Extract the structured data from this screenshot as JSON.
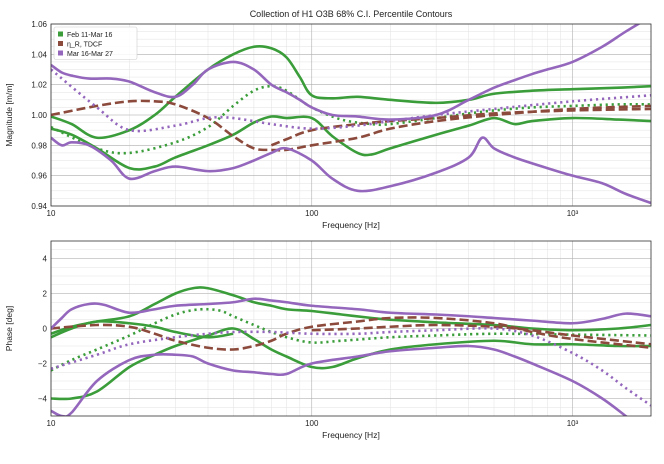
{
  "chart_data": [
    {
      "type": "line",
      "panel": "magnitude",
      "title": "Collection of H1 O3B 68% C.I. Percentile Contours",
      "xlabel": "Frequency [Hz]",
      "ylabel": "Magnitude [m/m]",
      "xscale": "log",
      "xlim": [
        10,
        2000
      ],
      "ylim": [
        0.94,
        1.06
      ],
      "xticks": [
        {
          "value": 10,
          "label": "10"
        },
        {
          "value": 100,
          "label": "100"
        },
        {
          "value": 1000,
          "label": "10³"
        }
      ],
      "yticks": [
        {
          "value": 0.94,
          "label": "0.94"
        },
        {
          "value": 0.96,
          "label": "0.96"
        },
        {
          "value": 0.98,
          "label": "0.98"
        },
        {
          "value": 1.0,
          "label": "1.00"
        },
        {
          "value": 1.02,
          "label": "1.02"
        },
        {
          "value": 1.04,
          "label": "1.04"
        },
        {
          "value": 1.06,
          "label": "1.06"
        }
      ],
      "ytick_major": 0.02,
      "legend_position": "top-left",
      "legend": [
        {
          "label": "Feb 11-Mar 16",
          "color": "#3a9d3a"
        },
        {
          "label": "η_R, TDCF",
          "color": "#8c4a3c"
        },
        {
          "label": "Mar 16-Mar 27",
          "color": "#9467bd"
        }
      ],
      "series": [
        {
          "name": "Feb 11-Mar 16 upper",
          "color": "#3a9d3a",
          "style": "solid",
          "x": [
            10,
            12,
            15,
            20,
            25,
            30,
            40,
            50,
            60,
            70,
            80,
            90,
            100,
            120,
            150,
            200,
            300,
            400,
            500,
            700,
            1000,
            1500,
            2000
          ],
          "y": [
            0.999,
            0.994,
            0.985,
            0.99,
            1.0,
            1.012,
            1.03,
            1.04,
            1.045,
            1.044,
            1.038,
            1.025,
            1.013,
            1.011,
            1.012,
            1.01,
            1.008,
            1.01,
            1.014,
            1.016,
            1.017,
            1.018,
            1.019
          ]
        },
        {
          "name": "Feb 11-Mar 16 median",
          "color": "#3a9d3a",
          "style": "dotted",
          "x": [
            10,
            15,
            20,
            30,
            40,
            50,
            60,
            70,
            80,
            100,
            130,
            170,
            200,
            300,
            400,
            500,
            700,
            1000,
            1500,
            2000
          ],
          "y": [
            0.992,
            0.978,
            0.975,
            0.982,
            0.992,
            1.006,
            1.016,
            1.019,
            1.016,
            1.005,
            0.997,
            0.994,
            0.994,
            0.998,
            1.001,
            1.003,
            1.005,
            1.006,
            1.007,
            1.007
          ]
        },
        {
          "name": "Feb 11-Mar 16 lower",
          "color": "#3a9d3a",
          "style": "solid",
          "x": [
            10,
            12,
            15,
            20,
            25,
            30,
            40,
            50,
            60,
            70,
            80,
            100,
            120,
            150,
            170,
            200,
            300,
            400,
            500,
            600,
            700,
            1000,
            1500,
            2000
          ],
          "y": [
            0.991,
            0.987,
            0.978,
            0.965,
            0.966,
            0.972,
            0.98,
            0.987,
            0.995,
            0.999,
            0.998,
            0.998,
            0.986,
            0.975,
            0.974,
            0.978,
            0.987,
            0.993,
            0.998,
            0.994,
            0.996,
            0.998,
            0.997,
            0.996
          ]
        },
        {
          "name": "eta_R TDCF upper",
          "color": "#8c4a3c",
          "style": "dashed",
          "x": [
            10,
            15,
            20,
            25,
            30,
            40,
            50,
            60,
            70,
            80,
            100,
            150,
            200,
            300,
            500,
            1000,
            2000
          ],
          "y": [
            1.0,
            1.006,
            1.009,
            1.009,
            1.007,
            0.998,
            0.986,
            0.978,
            0.977,
            0.977,
            0.98,
            0.985,
            0.991,
            0.996,
            1.0,
            1.004,
            1.006
          ]
        },
        {
          "name": "eta_R TDCF lower",
          "color": "#8c4a3c",
          "style": "dashed",
          "x": [
            70,
            80,
            100,
            150,
            200,
            300,
            500,
            1000,
            2000
          ],
          "y": [
            0.98,
            0.984,
            0.99,
            0.994,
            0.996,
            0.998,
            1.001,
            1.003,
            1.004
          ]
        },
        {
          "name": "Mar 16-Mar 27 upper",
          "color": "#9467bd",
          "style": "solid",
          "x": [
            10,
            11,
            12,
            14,
            17,
            20,
            25,
            30,
            35,
            40,
            50,
            60,
            70,
            80,
            90,
            100,
            120,
            150,
            200,
            300,
            400,
            500,
            600,
            700,
            800,
            1000,
            1300,
            1600,
            2000
          ],
          "y": [
            1.033,
            1.028,
            1.026,
            1.024,
            1.024,
            1.022,
            1.015,
            1.012,
            1.02,
            1.03,
            1.035,
            1.03,
            1.02,
            1.015,
            1.01,
            1.005,
            1.0,
            0.999,
            0.997,
            1.0,
            1.01,
            1.018,
            1.023,
            1.027,
            1.03,
            1.035,
            1.045,
            1.055,
            1.065
          ]
        },
        {
          "name": "Mar 16-Mar 27 median",
          "color": "#9467bd",
          "style": "dotted",
          "x": [
            10,
            15,
            20,
            30,
            40,
            50,
            70,
            100,
            150,
            200,
            300,
            500,
            1000,
            2000
          ],
          "y": [
            1.03,
            1.005,
            0.99,
            0.993,
            0.998,
            0.998,
            0.994,
            0.991,
            0.993,
            0.996,
            1.0,
            1.004,
            1.009,
            1.013
          ]
        },
        {
          "name": "Mar 16-Mar 27 lower",
          "color": "#9467bd",
          "style": "solid",
          "x": [
            10,
            11,
            12,
            14,
            17,
            20,
            25,
            30,
            40,
            50,
            60,
            70,
            80,
            100,
            120,
            150,
            200,
            300,
            400,
            450,
            500,
            600,
            800,
            1000,
            1300,
            1600,
            2000
          ],
          "y": [
            0.985,
            0.98,
            0.982,
            0.98,
            0.97,
            0.958,
            0.963,
            0.966,
            0.963,
            0.965,
            0.97,
            0.975,
            0.978,
            0.97,
            0.958,
            0.95,
            0.953,
            0.962,
            0.972,
            0.985,
            0.978,
            0.972,
            0.965,
            0.96,
            0.955,
            0.948,
            0.942
          ]
        }
      ]
    },
    {
      "type": "line",
      "panel": "phase",
      "xlabel": "Frequency [Hz]",
      "ylabel": "Phase [deg]",
      "xscale": "log",
      "xlim": [
        10,
        2000
      ],
      "ylim": [
        -5,
        5
      ],
      "xticks": [
        {
          "value": 10,
          "label": "10"
        },
        {
          "value": 100,
          "label": "100"
        },
        {
          "value": 1000,
          "label": "10³"
        }
      ],
      "yticks": [
        {
          "value": -4,
          "label": "−4"
        },
        {
          "value": -2,
          "label": "−2"
        },
        {
          "value": 0,
          "label": "0"
        },
        {
          "value": 2,
          "label": "2"
        },
        {
          "value": 4,
          "label": "4"
        }
      ],
      "ytick_major": 2,
      "series": [
        {
          "name": "Feb 11-Mar 16 upper",
          "color": "#3a9d3a",
          "style": "solid",
          "x": [
            10,
            12,
            15,
            20,
            25,
            30,
            35,
            40,
            50,
            60,
            70,
            80,
            100,
            130,
            170,
            200,
            300,
            500,
            700,
            1000,
            1500,
            2000
          ],
          "y": [
            -0.3,
            0.1,
            0.4,
            0.7,
            1.4,
            2.0,
            2.3,
            2.3,
            1.9,
            1.5,
            1.3,
            1.1,
            1.0,
            0.8,
            0.6,
            0.5,
            0.35,
            0.2,
            0.0,
            -0.1,
            0.0,
            0.2
          ]
        },
        {
          "name": "Feb 11-Mar 16 median",
          "color": "#3a9d3a",
          "style": "dotted",
          "x": [
            10,
            12,
            15,
            20,
            25,
            30,
            35,
            40,
            45,
            50,
            60,
            70,
            80,
            100,
            130,
            200,
            300,
            500,
            1000,
            2000
          ],
          "y": [
            -2.4,
            -1.8,
            -1.2,
            -0.4,
            0.3,
            0.8,
            1.05,
            1.1,
            1.0,
            0.7,
            0.2,
            -0.2,
            -0.5,
            -0.8,
            -0.7,
            -0.5,
            -0.4,
            -0.3,
            -0.35,
            -0.4
          ]
        },
        {
          "name": "Feb 11-Mar 16 lower",
          "color": "#3a9d3a",
          "style": "solid",
          "x": [
            10,
            12,
            15,
            20,
            25,
            30,
            40,
            50,
            60,
            70,
            80,
            100,
            120,
            150,
            200,
            300,
            500,
            700,
            1000,
            1500,
            2000
          ],
          "y": [
            -4.0,
            -4.0,
            -3.6,
            -2.2,
            -1.5,
            -1.0,
            -0.4,
            0.0,
            -0.6,
            -1.2,
            -1.6,
            -2.2,
            -2.2,
            -1.7,
            -1.2,
            -0.9,
            -0.7,
            -0.9,
            -0.9,
            -1.0,
            -1.0
          ]
        },
        {
          "name": "Feb 11-Mar 16 lower tail",
          "color": "#3a9d3a",
          "style": "solid",
          "x": [
            10,
            12,
            15,
            20,
            25,
            30,
            40,
            50
          ],
          "y": [
            -0.5,
            0.0,
            0.4,
            0.3,
            0.1,
            -0.2,
            -0.5,
            -0.3
          ]
        },
        {
          "name": "eta_R TDCF upper",
          "color": "#8c4a3c",
          "style": "dashed",
          "x": [
            10,
            15,
            20,
            25,
            30,
            40,
            50,
            60,
            70,
            80,
            100,
            150,
            200,
            300,
            500,
            700,
            1000,
            2000
          ],
          "y": [
            0.0,
            0.2,
            0.1,
            -0.3,
            -0.7,
            -1.1,
            -1.2,
            -1.0,
            -0.7,
            -0.3,
            0.1,
            0.4,
            0.6,
            0.6,
            0.3,
            -0.2,
            -0.6,
            -1.1
          ]
        },
        {
          "name": "eta_R TDCF lower",
          "color": "#8c4a3c",
          "style": "dashed",
          "x": [
            100,
            150,
            200,
            300,
            500,
            700,
            1000,
            2000
          ],
          "y": [
            -0.1,
            0.0,
            0.1,
            0.2,
            0.1,
            -0.1,
            -0.4,
            -0.9
          ]
        },
        {
          "name": "Mar 16-Mar 27 upper",
          "color": "#9467bd",
          "style": "solid",
          "x": [
            10,
            11,
            12,
            14,
            16,
            20,
            25,
            30,
            40,
            50,
            60,
            70,
            80,
            100,
            150,
            200,
            300,
            400,
            500,
            700,
            1000,
            1300,
            1600,
            2000
          ],
          "y": [
            0.0,
            0.6,
            1.1,
            1.4,
            1.35,
            0.9,
            1.1,
            1.3,
            1.4,
            1.5,
            1.7,
            1.6,
            1.5,
            1.3,
            1.1,
            0.9,
            0.8,
            0.7,
            0.6,
            0.45,
            0.3,
            0.55,
            0.85,
            0.7
          ]
        },
        {
          "name": "Mar 16-Mar 27 median",
          "color": "#9467bd",
          "style": "dotted",
          "x": [
            10,
            15,
            20,
            30,
            40,
            50,
            70,
            100,
            150,
            200,
            300,
            500,
            700,
            1000,
            1300,
            1600,
            2000
          ],
          "y": [
            -2.3,
            -1.5,
            -0.9,
            -0.5,
            -0.3,
            -0.2,
            -0.2,
            -0.3,
            -0.3,
            -0.2,
            -0.1,
            0.0,
            -0.4,
            -1.4,
            -2.4,
            -3.4,
            -4.4
          ]
        },
        {
          "name": "Mar 16-Mar 27 lower",
          "color": "#9467bd",
          "style": "solid",
          "x": [
            10,
            11,
            12,
            15,
            20,
            25,
            30,
            35,
            40,
            50,
            60,
            70,
            80,
            100,
            150,
            200,
            300,
            400,
            500,
            600,
            700,
            1000,
            1300,
            1600,
            1800
          ],
          "y": [
            -4.7,
            -5.0,
            -4.8,
            -3.0,
            -1.8,
            -1.5,
            -1.5,
            -1.6,
            -2.0,
            -2.4,
            -2.5,
            -2.6,
            -2.6,
            -2.0,
            -1.6,
            -1.3,
            -1.1,
            -1.0,
            -1.2,
            -1.6,
            -2.0,
            -3.0,
            -4.0,
            -5.0,
            -5.6
          ]
        }
      ]
    }
  ]
}
